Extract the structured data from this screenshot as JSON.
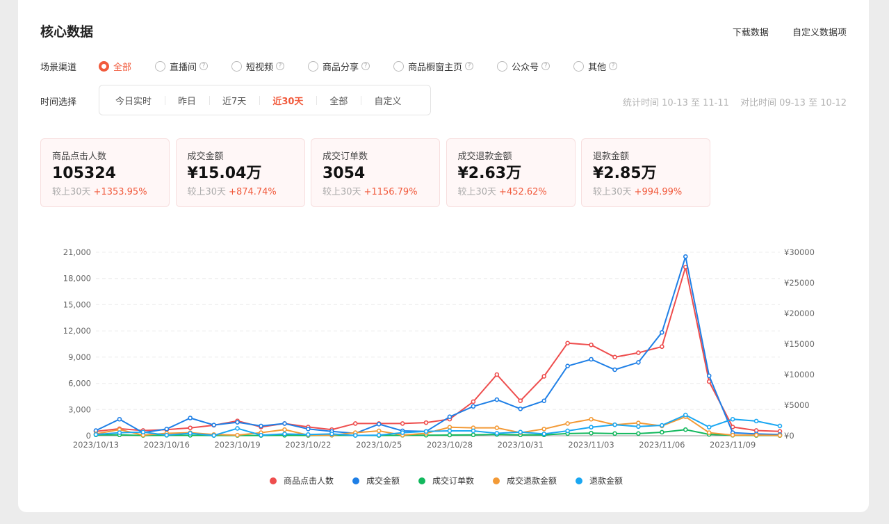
{
  "header": {
    "title": "核心数据",
    "download_label": "下载数据",
    "customize_label": "自定义数据项"
  },
  "channels": {
    "label": "场景渠道",
    "options": [
      {
        "label": "全部",
        "selected": true,
        "help": false
      },
      {
        "label": "直播间",
        "selected": false,
        "help": true
      },
      {
        "label": "短视频",
        "selected": false,
        "help": true
      },
      {
        "label": "商品分享",
        "selected": false,
        "help": true
      },
      {
        "label": "商品橱窗主页",
        "selected": false,
        "help": true
      },
      {
        "label": "公众号",
        "selected": false,
        "help": true
      },
      {
        "label": "其他",
        "selected": false,
        "help": true
      }
    ]
  },
  "time": {
    "label": "时间选择",
    "options": [
      {
        "label": "今日实时",
        "selected": false
      },
      {
        "label": "昨日",
        "selected": false
      },
      {
        "label": "近7天",
        "selected": false
      },
      {
        "label": "近30天",
        "selected": true
      },
      {
        "label": "全部",
        "selected": false
      },
      {
        "label": "自定义",
        "selected": false
      }
    ],
    "stat_range": "统计时间 10-13 至 11-11",
    "compare_range": "对比时间 09-13 至 10-12"
  },
  "kpis": [
    {
      "label": "商品点击人数",
      "value": "105324",
      "compare": "较上30天",
      "change": "+1353.95%"
    },
    {
      "label": "成交金额",
      "value": "¥15.04万",
      "compare": "较上30天",
      "change": "+874.74%"
    },
    {
      "label": "成交订单数",
      "value": "3054",
      "compare": "较上30天",
      "change": "+1156.79%"
    },
    {
      "label": "成交退款金额",
      "value": "¥2.63万",
      "compare": "较上30天",
      "change": "+452.62%"
    },
    {
      "label": "退款金额",
      "value": "¥2.85万",
      "compare": "较上30天",
      "change": "+994.99%"
    }
  ],
  "chart_data": {
    "type": "line",
    "x": [
      "2023/10/13",
      "2023/10/14",
      "2023/10/15",
      "2023/10/16",
      "2023/10/17",
      "2023/10/18",
      "2023/10/19",
      "2023/10/20",
      "2023/10/21",
      "2023/10/22",
      "2023/10/23",
      "2023/10/24",
      "2023/10/25",
      "2023/10/26",
      "2023/10/27",
      "2023/10/28",
      "2023/10/29",
      "2023/10/30",
      "2023/10/31",
      "2023/11/01",
      "2023/11/02",
      "2023/11/03",
      "2023/11/04",
      "2023/11/05",
      "2023/11/06",
      "2023/11/07",
      "2023/11/08",
      "2023/11/09",
      "2023/11/10",
      "2023/11/11"
    ],
    "x_tick_labels": [
      "2023/10/13",
      "2023/10/16",
      "2023/10/19",
      "2023/10/22",
      "2023/10/25",
      "2023/10/28",
      "2023/10/31",
      "2023/11/03",
      "2023/11/06",
      "2023/11/09"
    ],
    "x_tick_every": 3,
    "y_left": {
      "ticks": [
        "0",
        "3,000",
        "6,000",
        "9,000",
        "12,000",
        "15,000",
        "18,000",
        "21,000"
      ],
      "min": 0,
      "max": 21000
    },
    "y_right": {
      "ticks": [
        "¥0",
        "¥5000",
        "¥10000",
        "¥15000",
        "¥20000",
        "¥25000",
        "¥30000"
      ],
      "min": 0,
      "max": 30000
    },
    "grid": "horizontal dashed",
    "legend_position": "bottom",
    "series": [
      {
        "name": "商品点击人数",
        "color": "#ee4d4d",
        "axis": "left",
        "values": [
          500,
          800,
          600,
          700,
          900,
          1200,
          1700,
          1000,
          1400,
          1000,
          700,
          1400,
          1400,
          1400,
          1500,
          1900,
          3900,
          7000,
          4000,
          6800,
          10600,
          10400,
          9000,
          9500,
          10200,
          19300,
          6200,
          1000,
          600,
          500
        ]
      },
      {
        "name": "成交金额",
        "color": "#1e7fe6",
        "axis": "right",
        "values": [
          850,
          2700,
          500,
          1100,
          2900,
          1750,
          2200,
          1600,
          2000,
          1100,
          700,
          400,
          1900,
          800,
          700,
          3100,
          4800,
          5900,
          4400,
          5700,
          11400,
          12500,
          10800,
          12000,
          16900,
          29300,
          9800,
          500,
          300,
          200
        ]
      },
      {
        "name": "成交订单数",
        "color": "#12b85d",
        "axis": "left",
        "values": [
          100,
          100,
          30,
          50,
          50,
          30,
          30,
          30,
          50,
          30,
          60,
          40,
          30,
          50,
          60,
          80,
          100,
          150,
          100,
          100,
          250,
          300,
          250,
          250,
          400,
          700,
          150,
          50,
          30,
          20
        ]
      },
      {
        "name": "成交退款金额",
        "color": "#f39a36",
        "axis": "right",
        "values": [
          300,
          1000,
          100,
          400,
          500,
          200,
          100,
          500,
          1000,
          100,
          100,
          500,
          800,
          100,
          400,
          1400,
          1300,
          1300,
          500,
          1100,
          2000,
          2700,
          1800,
          2100,
          1600,
          3100,
          500,
          100,
          100,
          50
        ]
      },
      {
        "name": "退款金额",
        "color": "#1aa7f2",
        "axis": "right",
        "values": [
          200,
          500,
          600,
          100,
          400,
          50,
          1200,
          100,
          300,
          200,
          300,
          50,
          100,
          500,
          700,
          800,
          800,
          400,
          600,
          300,
          800,
          1400,
          1800,
          1500,
          1700,
          3400,
          1400,
          2700,
          2400,
          1600
        ]
      }
    ]
  }
}
